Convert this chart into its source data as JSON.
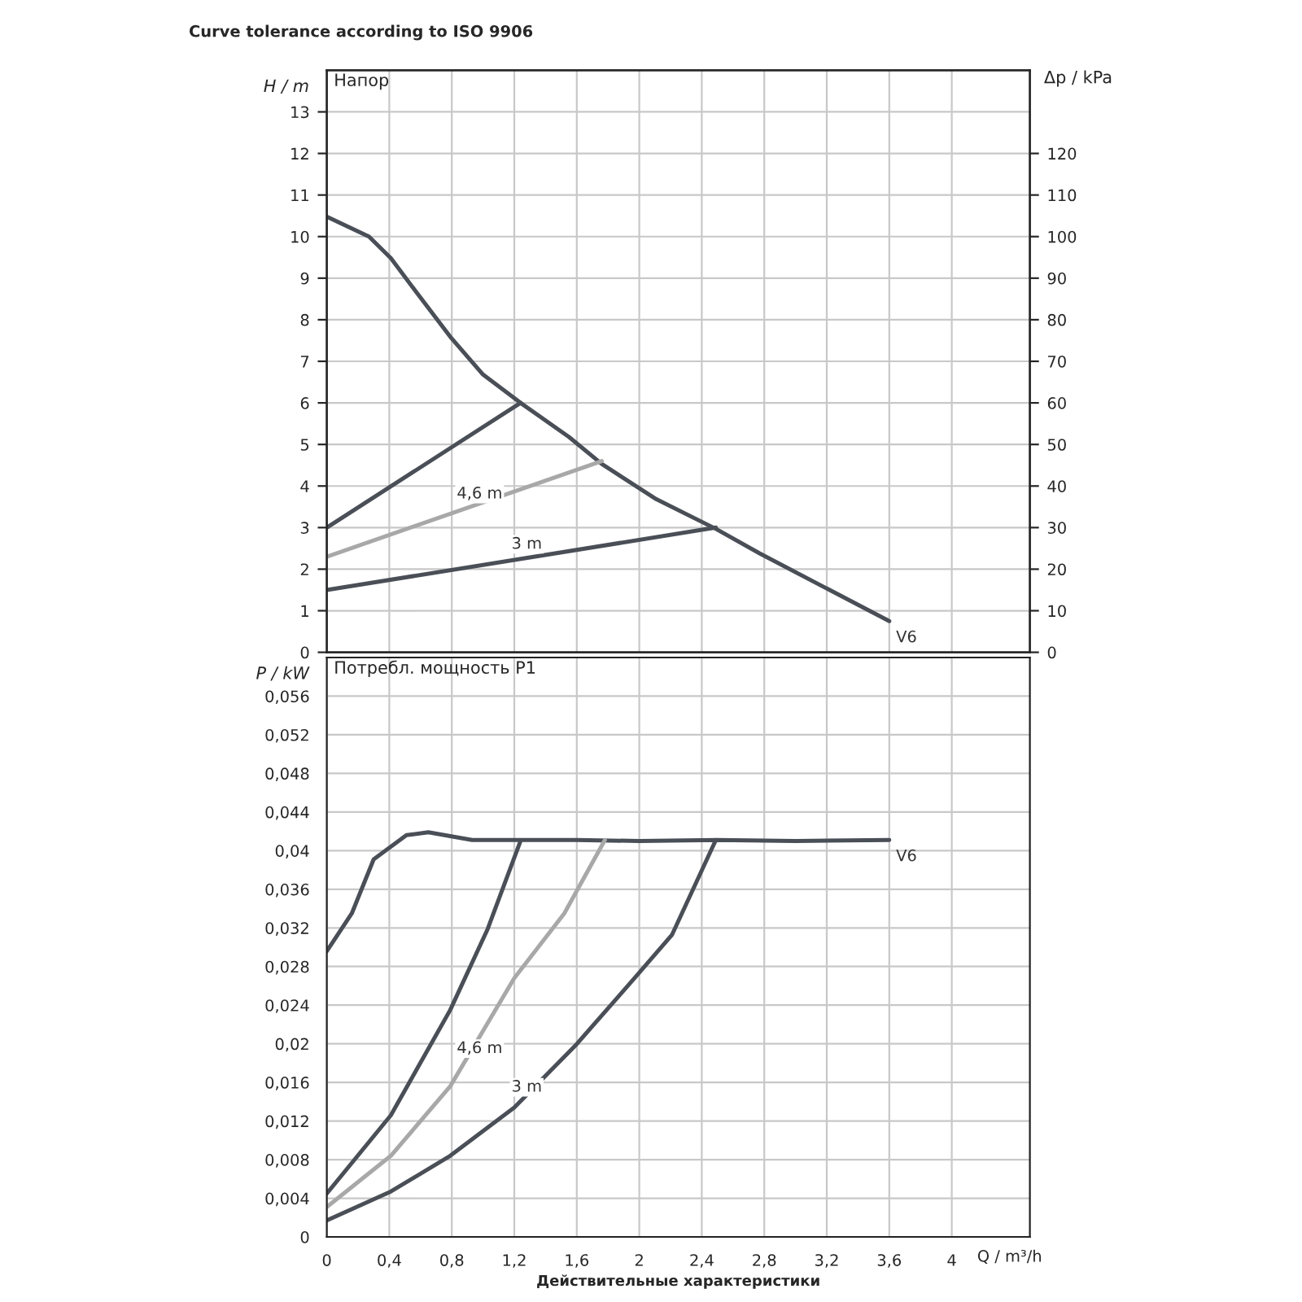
{
  "chart_data": [
    {
      "type": "line",
      "title": "Напор",
      "ylabel": "H / m",
      "y2label": "Δp / kPa",
      "annotations": [
        "Curve tolerance according to ISO 9906",
        {
          "text": "4,6 m",
          "x": 0.89,
          "y": 3.46
        },
        {
          "text": "3 m",
          "x": 1.24,
          "y": 2.25
        },
        {
          "text": "V6",
          "x": 3.6,
          "y": 0.75
        }
      ],
      "series": [
        {
          "color": "#4a4f57",
          "x": [
            0,
            0.27,
            0.41,
            0.58,
            0.79,
            1.0,
            1.24,
            1.55,
            1.76,
            2.11,
            2.49,
            2.77,
            3.6
          ],
          "values": [
            10.48,
            10.0,
            9.48,
            8.63,
            7.59,
            6.68,
            6.0,
            5.18,
            4.53,
            3.68,
            2.97,
            2.38,
            0.75
          ]
        },
        {
          "color": "#4a4f57",
          "x": [
            0,
            1.24
          ],
          "values": [
            3.0,
            6.0
          ]
        },
        {
          "color": "#a8a8a8",
          "x": [
            0,
            1.76
          ],
          "values": [
            2.3,
            4.6
          ]
        },
        {
          "color": "#4a4f57",
          "x": [
            0,
            2.49
          ],
          "values": [
            1.5,
            3.0
          ]
        }
      ],
      "xlim": [
        0,
        4.5
      ],
      "xticks": [
        {
          "value": 0,
          "label": null
        },
        {
          "value": 0.4,
          "label": null
        },
        {
          "value": 0.8,
          "label": null
        },
        {
          "value": 1.2,
          "label": null
        },
        {
          "value": 1.6,
          "label": null
        },
        {
          "value": 2,
          "label": null
        },
        {
          "value": 2.4,
          "label": null
        },
        {
          "value": 2.8,
          "label": null
        },
        {
          "value": 3.2,
          "label": null
        },
        {
          "value": 3.6,
          "label": null
        },
        {
          "value": 4,
          "label": null
        }
      ],
      "ylim": [
        0,
        14
      ],
      "yticks": [
        0,
        1,
        2,
        3,
        4,
        5,
        6,
        7,
        8,
        9,
        10,
        11,
        12,
        13
      ],
      "y2lim": [
        0,
        140
      ],
      "y2ticks": [
        0,
        10,
        20,
        30,
        40,
        50,
        60,
        70,
        80,
        90,
        100,
        110,
        120
      ],
      "tick_labels": "y",
      "grid": true,
      "legend": false
    },
    {
      "type": "line",
      "title": "Потребл. мощность P1",
      "ylabel": "P / kW",
      "xlabel": "Q / m³/h",
      "annotations": [
        "Действительные характеристики",
        {
          "text": "4,6 m",
          "x": 0.89,
          "y": 0.018
        },
        {
          "text": "3 m",
          "x": 1.24,
          "y": 0.014
        },
        {
          "text": "V6",
          "x": 3.6,
          "y": 0.0411
        }
      ],
      "series": [
        {
          "color": "#4a4f57",
          "x": [
            0,
            0.16,
            0.3,
            0.51,
            0.65,
            0.93,
            1.24,
            1.6,
            2.0,
            2.5,
            3.0,
            3.6
          ],
          "values": [
            0.0296,
            0.0335,
            0.0391,
            0.0416,
            0.0419,
            0.0411,
            0.0411,
            0.0411,
            0.041,
            0.0411,
            0.041,
            0.0411
          ]
        },
        {
          "color": "#4a4f57",
          "x": [
            0,
            0.41,
            0.79,
            1.03,
            1.24
          ],
          "values": [
            0.0045,
            0.0126,
            0.0235,
            0.0319,
            0.041
          ]
        },
        {
          "color": "#a8a8a8",
          "x": [
            0,
            0.41,
            0.79,
            1.2,
            1.52,
            1.78
          ],
          "values": [
            0.0031,
            0.0084,
            0.0156,
            0.0268,
            0.0335,
            0.0411
          ]
        },
        {
          "color": "#4a4f57",
          "x": [
            0,
            0.41,
            0.79,
            1.2,
            1.59,
            1.97,
            2.21,
            2.49
          ],
          "values": [
            0.0017,
            0.0047,
            0.0084,
            0.0134,
            0.0198,
            0.0268,
            0.0313,
            0.0411
          ]
        }
      ],
      "xlim": [
        0,
        4.5
      ],
      "xticks": [
        0,
        {
          "value": 0.4,
          "label": "0,4"
        },
        {
          "value": 0.8,
          "label": "0,8"
        },
        {
          "value": 1.2,
          "label": "1,2"
        },
        {
          "value": 1.6,
          "label": "1,6"
        },
        2,
        {
          "value": 2.4,
          "label": "2,4"
        },
        {
          "value": 2.8,
          "label": "2,8"
        },
        {
          "value": 3.2,
          "label": "3,2"
        },
        {
          "value": 3.6,
          "label": "3,6"
        },
        4
      ],
      "ylim": [
        0,
        0.06
      ],
      "yticks": [
        0,
        {
          "value": 0.004,
          "label": "0,004"
        },
        {
          "value": 0.008,
          "label": "0,008"
        },
        {
          "value": 0.012,
          "label": "0,012"
        },
        {
          "value": 0.016,
          "label": "0,016"
        },
        {
          "value": 0.02,
          "label": "0,02"
        },
        {
          "value": 0.024,
          "label": "0,024"
        },
        {
          "value": 0.028,
          "label": "0,028"
        },
        {
          "value": 0.032,
          "label": "0,032"
        },
        {
          "value": 0.036,
          "label": "0,036"
        },
        {
          "value": 0.04,
          "label": "0,04"
        },
        {
          "value": 0.044,
          "label": "0,044"
        },
        {
          "value": 0.048,
          "label": "0,048"
        },
        {
          "value": 0.052,
          "label": "0,052"
        },
        {
          "value": 0.056,
          "label": "0,056"
        }
      ],
      "grid": true,
      "legend": false
    }
  ]
}
